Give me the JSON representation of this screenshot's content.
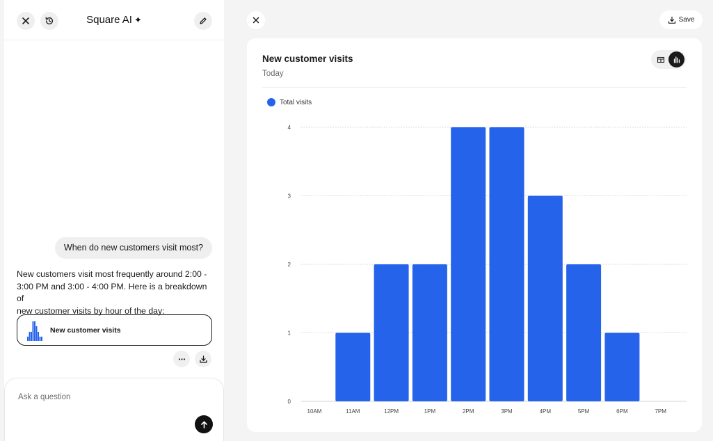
{
  "chat": {
    "title": "Square AI",
    "title_icon": "sparkle-icon",
    "user_message": "When do new customers visit most?",
    "ai_lines": [
      "New customers visit most frequently around 2:00 -",
      "3:00 PM and 3:00 - 4:00 PM. Here is a breakdown of",
      "new customer visits by hour of the day:"
    ],
    "result_card_label": "New customer visits",
    "input_placeholder": "Ask a question"
  },
  "toolbar": {
    "save_label": "Save"
  },
  "colors": {
    "accent": "#2563eb",
    "dark": "#1a1a1a"
  },
  "chart": {
    "title": "New customer visits",
    "subtitle": "Today"
  },
  "chart_data": {
    "type": "bar",
    "title": "New customer visits",
    "subtitle": "Today",
    "categories": [
      "10AM",
      "11AM",
      "12PM",
      "1PM",
      "2PM",
      "3PM",
      "4PM",
      "5PM",
      "6PM",
      "7PM"
    ],
    "series": [
      {
        "name": "Total visits",
        "values": [
          0,
          1,
          2,
          2,
          4,
          4,
          3,
          2,
          1,
          0
        ],
        "color": "#2563eb"
      }
    ],
    "yticks": [
      0,
      1,
      2,
      3,
      4
    ],
    "ylim": [
      0,
      4
    ],
    "xlabel": "",
    "ylabel": "",
    "grid": true,
    "legend": "top-left"
  }
}
